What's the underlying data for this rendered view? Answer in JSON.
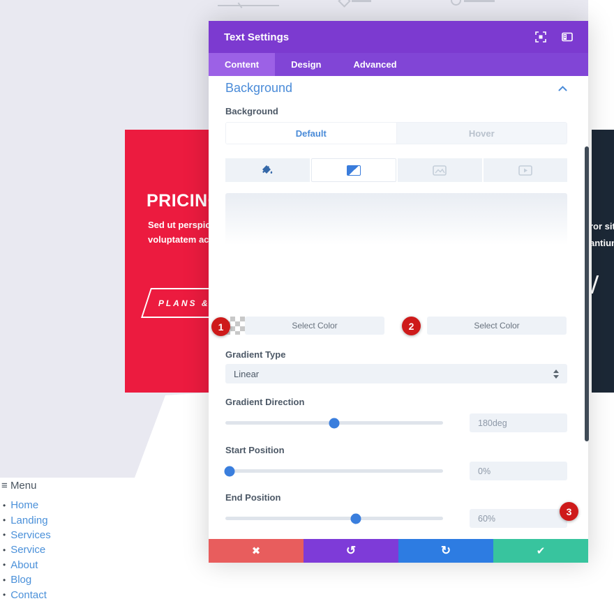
{
  "colors": {
    "modal_header_purple": "#7c3ad0",
    "modal_tabbar_purple": "#8145d6",
    "modal_active_tab_purple": "#9c61e6",
    "section_title_blue": "#4a8bd8",
    "label_slate": "#4c5866",
    "slider_thumb_blue": "#3a7edd",
    "badge_red": "#ce1a1a",
    "pricing_card_red": "#ec1b3f",
    "dark_card_navy": "#1c2836",
    "menu_link_blue": "#4a90d9",
    "footer_cancel_red": "#e85d5d",
    "footer_undo_purple": "#7e3bd8",
    "footer_redo_blue": "#2d7ce2",
    "footer_save_green": "#38c49e"
  },
  "page": {
    "menu": {
      "icon": "≡",
      "title": "Menu",
      "bullet": "•",
      "items": [
        "Home",
        "Landing",
        "Services",
        "Service",
        "About",
        "Blog",
        "Contact"
      ]
    },
    "pricing_card": {
      "title": "PRICING",
      "body_line1": "Sed ut perspicia",
      "body_line2": "voluptatem acc",
      "button_label": "PLANS &"
    },
    "dark_card": {
      "text_line1": "ror sit",
      "text_line2": "antium"
    }
  },
  "modal": {
    "title": "Text Settings",
    "tabs": [
      {
        "label": "Content",
        "active": true
      },
      {
        "label": "Design",
        "active": false
      },
      {
        "label": "Advanced",
        "active": false
      }
    ],
    "section_title": "Background",
    "background_label": "Background",
    "state_default": "Default",
    "state_hover": "Hover",
    "type_tabs": [
      "color",
      "gradient",
      "image",
      "video"
    ],
    "active_type_tab": "gradient",
    "gradient": {
      "stop1_button": "Select Color",
      "stop2_button": "Select Color",
      "type_label": "Gradient Type",
      "type_value": "Linear",
      "direction_label": "Gradient Direction",
      "direction_value": "180deg",
      "direction_percent": 50,
      "start_label": "Start Position",
      "start_value": "0%",
      "start_percent": 2,
      "end_label": "End Position",
      "end_value": "60%",
      "end_percent": 60
    },
    "footer": {
      "cancel_icon": "✖",
      "undo_icon": "↺",
      "redo_icon": "↻",
      "save_icon": "✔"
    }
  },
  "annotations": {
    "badge1": "1",
    "badge2": "2",
    "badge3": "3"
  }
}
